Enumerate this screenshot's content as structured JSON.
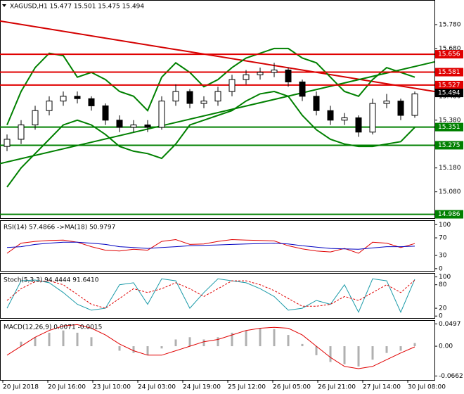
{
  "chart_data": {
    "type": "candlestick",
    "title": "XAGUSD,H1  15.477 15.501 15.475 15.494",
    "x_labels": [
      "20 Jul 2018",
      "20 Jul 16:00",
      "23 Jul 10:00",
      "24 Jul 03:00",
      "24 Jul 19:00",
      "25 Jul 12:00",
      "26 Jul 05:00",
      "26 Jul 21:00",
      "27 Jul 14:00",
      "30 Jul 08:00"
    ],
    "ylim": [
      14.97,
      15.883
    ],
    "yticks": [
      {
        "value": 15.78,
        "label": "15.780"
      },
      {
        "value": 15.68,
        "label": "15.680"
      },
      {
        "value": 15.58,
        "label": "15.580"
      },
      {
        "value": 15.48,
        "label": "15.480"
      },
      {
        "value": 15.38,
        "label": "15.380"
      },
      {
        "value": 15.28,
        "label": "15.280"
      },
      {
        "value": 15.18,
        "label": "15.180"
      },
      {
        "value": 15.08,
        "label": "15.080"
      }
    ],
    "open": [
      15.27,
      15.3,
      15.36,
      15.42,
      15.46,
      15.48,
      15.47,
      15.44,
      15.38,
      15.35,
      15.36,
      15.35,
      15.46,
      15.5,
      15.45,
      15.46,
      15.5,
      15.55,
      15.57,
      15.58,
      15.59,
      15.54,
      15.48,
      15.42,
      15.38,
      15.39,
      15.33,
      15.45,
      15.46,
      15.4
    ],
    "high": [
      15.32,
      15.38,
      15.44,
      15.48,
      15.5,
      15.5,
      15.48,
      15.45,
      15.4,
      15.38,
      15.38,
      15.48,
      15.53,
      15.51,
      15.48,
      15.52,
      15.57,
      15.59,
      15.6,
      15.62,
      15.6,
      15.55,
      15.5,
      15.44,
      15.41,
      15.4,
      15.47,
      15.49,
      15.47,
      15.5
    ],
    "low": [
      15.25,
      15.28,
      15.34,
      15.4,
      15.44,
      15.45,
      15.42,
      15.36,
      15.33,
      15.33,
      15.33,
      15.34,
      15.44,
      15.43,
      15.43,
      15.44,
      15.48,
      15.53,
      15.55,
      15.56,
      15.52,
      15.46,
      15.4,
      15.36,
      15.36,
      15.31,
      15.32,
      15.43,
      15.38,
      15.39
    ],
    "close": [
      15.3,
      15.36,
      15.42,
      15.46,
      15.48,
      15.47,
      15.44,
      15.38,
      15.35,
      15.36,
      15.35,
      15.46,
      15.5,
      15.45,
      15.46,
      15.5,
      15.55,
      15.57,
      15.58,
      15.59,
      15.54,
      15.48,
      15.42,
      15.38,
      15.39,
      15.33,
      15.45,
      15.46,
      15.4,
      15.49
    ],
    "bands": [
      {
        "color": "#008000",
        "values": [
          15.36,
          15.5,
          15.6,
          15.66,
          15.65,
          15.56,
          15.58,
          15.55,
          15.5,
          15.48,
          15.42,
          15.56,
          15.62,
          15.58,
          15.52,
          15.55,
          15.6,
          15.64,
          15.66,
          15.68,
          15.68,
          15.64,
          15.62,
          15.56,
          15.5,
          15.48,
          15.55,
          15.6,
          15.58,
          15.56
        ]
      },
      {
        "color": "#008000",
        "values": [
          15.1,
          15.18,
          15.24,
          15.3,
          15.36,
          15.38,
          15.36,
          15.32,
          15.27,
          15.25,
          15.24,
          15.22,
          15.28,
          15.36,
          15.38,
          15.4,
          15.42,
          15.46,
          15.49,
          15.5,
          15.48,
          15.4,
          15.34,
          15.3,
          15.28,
          15.27,
          15.27,
          15.28,
          15.29,
          15.35
        ]
      }
    ],
    "trendlines": [
      {
        "color": "#d40000",
        "values": [
          15.795,
          15.5
        ]
      },
      {
        "color": "#008000",
        "values": [
          15.198,
          15.624
        ]
      }
    ],
    "levels": [
      {
        "value": 15.656,
        "color": "#e00000"
      },
      {
        "value": 15.581,
        "color": "#e00000"
      },
      {
        "value": 15.527,
        "color": "#e00000"
      },
      {
        "value": 15.351,
        "color": "#008000"
      },
      {
        "value": 15.275,
        "color": "#008000"
      },
      {
        "value": 14.986,
        "color": "#008000"
      }
    ],
    "last_price": 15.494,
    "last_color": "#000000",
    "panels": [
      {
        "title": "RSI(14) 57.4866 ->MA(18) 50.9797",
        "ylim": [
          -5,
          110
        ],
        "yticks": [
          100,
          70,
          30,
          0
        ],
        "series": [
          {
            "color": "#e00000",
            "style": "line",
            "values": [
              35,
              58,
              62,
              64,
              65,
              60,
              50,
              42,
              40,
              44,
              42,
              62,
              66,
              55,
              56,
              62,
              66,
              65,
              64,
              63,
              52,
              45,
              40,
              38,
              46,
              35,
              60,
              58,
              48,
              57
            ]
          },
          {
            "color": "#0000c0",
            "style": "line",
            "values": [
              48,
              50,
              55,
              58,
              60,
              60,
              58,
              55,
              50,
              48,
              46,
              48,
              50,
              52,
              53,
              54,
              55,
              56,
              57,
              58,
              56,
              52,
              49,
              46,
              45,
              44,
              47,
              50,
              50,
              51
            ]
          }
        ]
      },
      {
        "title": "Stoch(5,3,3) 94.4444 91.6410",
        "ylim": [
          -5,
          110
        ],
        "yticks": [
          100,
          80,
          20,
          0
        ],
        "series": [
          {
            "color": "#1a9aa8",
            "style": "line",
            "values": [
              20,
              90,
              92,
              85,
              60,
              30,
              15,
              20,
              80,
              85,
              30,
              95,
              90,
              20,
              60,
              95,
              90,
              85,
              70,
              50,
              15,
              20,
              40,
              30,
              80,
              10,
              95,
              90,
              10,
              94
            ]
          },
          {
            "color": "#e00000",
            "style": "dash",
            "values": [
              40,
              70,
              88,
              90,
              80,
              55,
              30,
              20,
              45,
              70,
              60,
              70,
              85,
              70,
              50,
              70,
              90,
              90,
              80,
              65,
              45,
              25,
              25,
              30,
              50,
              40,
              60,
              80,
              60,
              92
            ]
          }
        ]
      },
      {
        "title": "MACD(12,26,9) 0.0071 -0.0015",
        "ylim": [
          -0.075,
          0.058
        ],
        "yticks": [
          0.0497,
          {
            "value": 0,
            "label": "0.00"
          },
          -0.0662
        ],
        "series": [
          {
            "color": "#b0b0b0",
            "style": "hist",
            "values": [
              0.0,
              0.01,
              0.02,
              0.03,
              0.035,
              0.03,
              0.02,
              0.0,
              -0.01,
              -0.015,
              -0.02,
              -0.005,
              0.015,
              0.02,
              0.015,
              0.02,
              0.03,
              0.035,
              0.04,
              0.038,
              0.025,
              0.005,
              -0.02,
              -0.035,
              -0.04,
              -0.045,
              -0.03,
              -0.015,
              -0.01,
              0.007
            ]
          },
          {
            "color": "#e00000",
            "style": "line",
            "values": [
              -0.02,
              0.0,
              0.02,
              0.035,
              0.045,
              0.048,
              0.04,
              0.025,
              0.005,
              -0.01,
              -0.02,
              -0.02,
              -0.01,
              0.0,
              0.01,
              0.015,
              0.025,
              0.035,
              0.04,
              0.042,
              0.04,
              0.025,
              0.0,
              -0.025,
              -0.045,
              -0.05,
              -0.045,
              -0.03,
              -0.015,
              -0.0015
            ]
          }
        ]
      }
    ]
  }
}
